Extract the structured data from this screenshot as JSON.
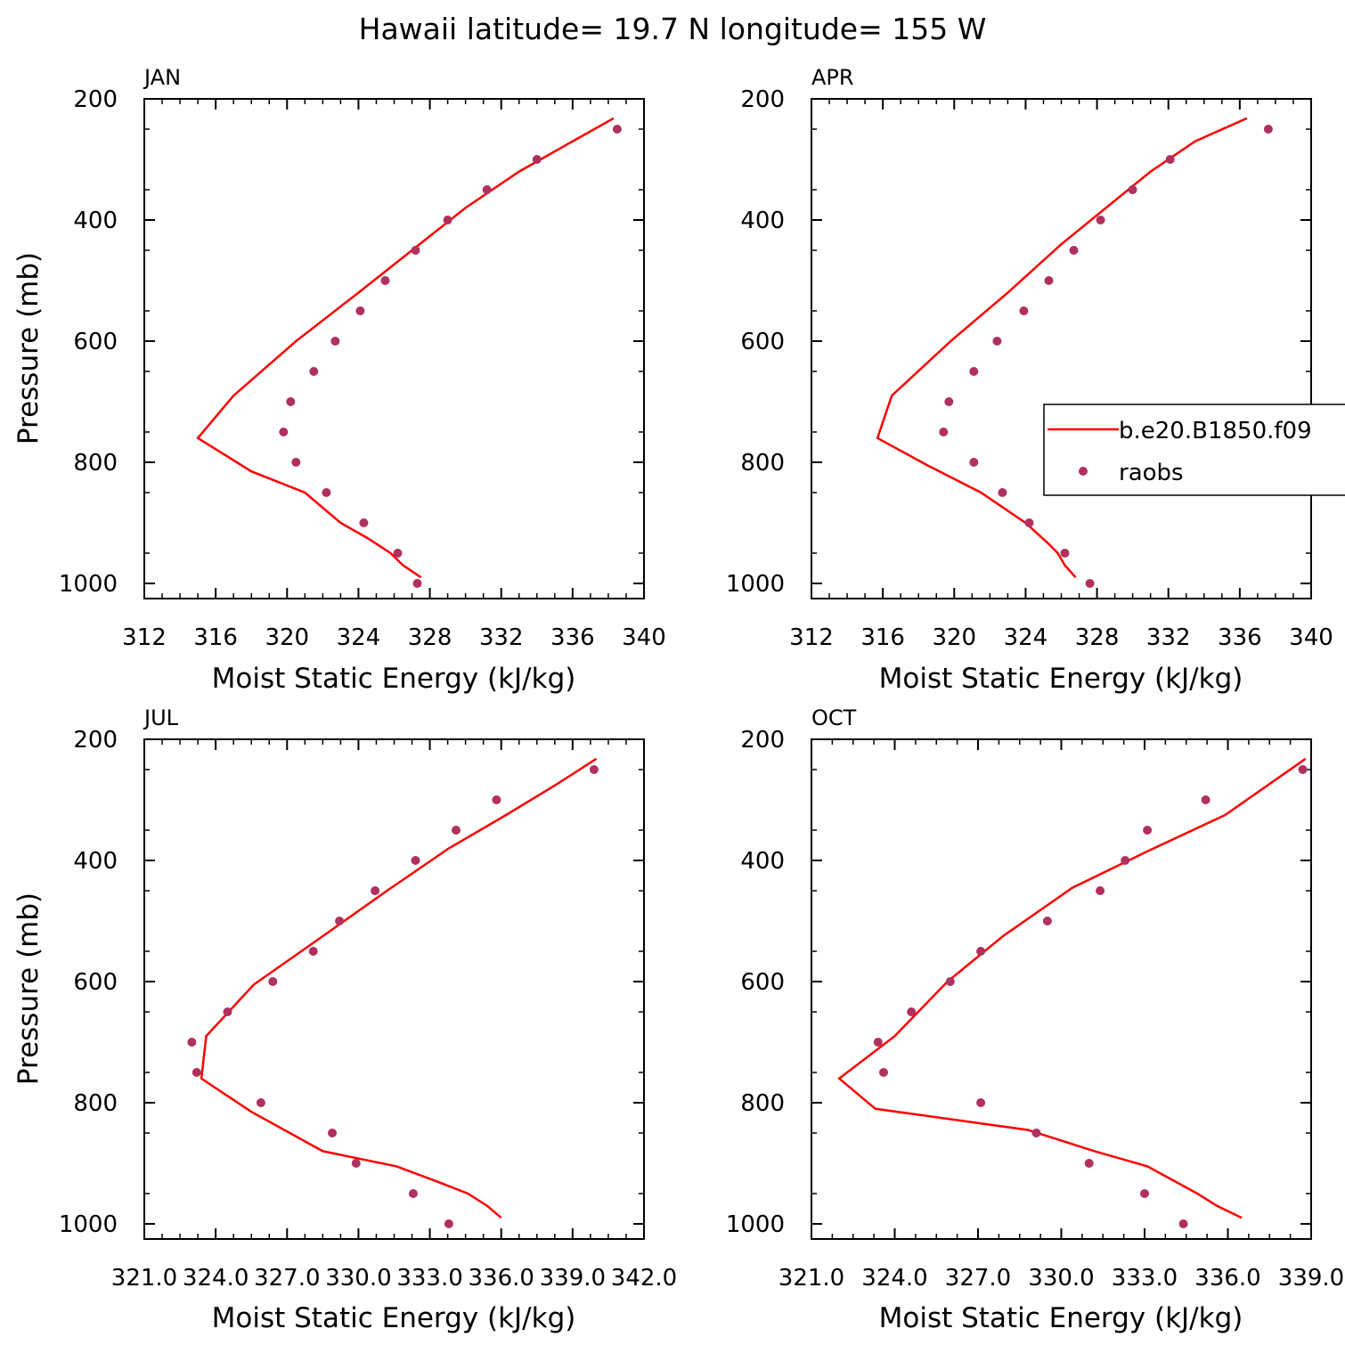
{
  "title": "Hawaii  latitude= 19.7 N longitude= 155 W",
  "colors": {
    "model": "#ff0000",
    "obs": "#b03060",
    "axis": "#000000"
  },
  "legend": {
    "entries": [
      "b.e20.B1850.f09",
      "raobs"
    ],
    "placement": "right of APR panel"
  },
  "chart_data": [
    {
      "type": "line+scatter",
      "panel_label": "JAN",
      "xlabel": "Moist Static Energy (kJ/kg)",
      "ylabel": "Pressure (mb)",
      "xlim": [
        312,
        340
      ],
      "ylim": [
        1000,
        200
      ],
      "xticks": [
        312,
        316,
        320,
        324,
        328,
        332,
        336,
        340
      ],
      "xtick_labels": [
        "312",
        "316",
        "320",
        "324",
        "328",
        "332",
        "336",
        "340"
      ],
      "yticks": [
        200,
        400,
        600,
        800,
        1000
      ],
      "ytick_labels": [
        "200",
        "400",
        "600",
        "800",
        "1000"
      ],
      "series": [
        {
          "name": "b.e20.B1850.f09",
          "kind": "line",
          "x": [
            327.5,
            326.5,
            325.8,
            324.5,
            323,
            321,
            318,
            315,
            317,
            320.5,
            324,
            327,
            330,
            333,
            336,
            338.3
          ],
          "y": [
            990,
            970,
            950,
            925,
            900,
            850,
            815,
            760,
            690,
            600,
            520,
            450,
            380,
            320,
            270,
            232
          ]
        },
        {
          "name": "raobs",
          "kind": "scatter",
          "x": [
            327.3,
            326.2,
            324.3,
            322.2,
            320.5,
            319.8,
            320.2,
            321.5,
            322.7,
            324.1,
            325.5,
            327.2,
            329,
            331.2,
            334,
            338.5
          ],
          "y": [
            1000,
            950,
            900,
            850,
            800,
            750,
            700,
            650,
            600,
            550,
            500,
            450,
            400,
            350,
            300,
            250
          ]
        }
      ]
    },
    {
      "type": "line+scatter",
      "panel_label": "APR",
      "xlabel": "Moist Static Energy (kJ/kg)",
      "ylabel": "",
      "xlim": [
        312,
        340
      ],
      "ylim": [
        1000,
        200
      ],
      "xticks": [
        312,
        316,
        320,
        324,
        328,
        332,
        336,
        340
      ],
      "xtick_labels": [
        "312",
        "316",
        "320",
        "324",
        "328",
        "332",
        "336",
        "340"
      ],
      "yticks": [
        200,
        400,
        600,
        800,
        1000
      ],
      "ytick_labels": [
        "200",
        "400",
        "600",
        "800",
        "1000"
      ],
      "series": [
        {
          "name": "b.e20.B1850.f09",
          "kind": "line",
          "x": [
            326.8,
            326.2,
            325.8,
            325.3,
            324,
            321.5,
            318.5,
            315.7,
            316.5,
            319.8,
            323,
            326,
            328.5,
            331,
            333.5,
            336.4
          ],
          "y": [
            990,
            970,
            950,
            935,
            900,
            850,
            805,
            760,
            690,
            600,
            520,
            440,
            380,
            320,
            270,
            232
          ]
        },
        {
          "name": "raobs",
          "kind": "scatter",
          "x": [
            327.6,
            326.2,
            324.2,
            322.7,
            321.1,
            319.4,
            319.7,
            321.1,
            322.4,
            323.9,
            325.3,
            326.7,
            328.2,
            330,
            332.1,
            337.6
          ],
          "y": [
            1000,
            950,
            900,
            850,
            800,
            750,
            700,
            650,
            600,
            550,
            500,
            450,
            400,
            350,
            300,
            250
          ]
        }
      ]
    },
    {
      "type": "line+scatter",
      "panel_label": "JUL",
      "xlabel": "Moist Static Energy (kJ/kg)",
      "ylabel": "Pressure (mb)",
      "xlim": [
        321,
        342
      ],
      "ylim": [
        1000,
        200
      ],
      "xticks": [
        321,
        324,
        327,
        330,
        333,
        336,
        339,
        342
      ],
      "xtick_labels": [
        "321.0",
        "324.0",
        "327.0",
        "330.0",
        "333.0",
        "336.0",
        "339.0",
        "342.0"
      ],
      "yticks": [
        200,
        400,
        600,
        800,
        1000
      ],
      "ytick_labels": [
        "200",
        "400",
        "600",
        "800",
        "1000"
      ],
      "series": [
        {
          "name": "b.e20.B1850.f09",
          "kind": "line",
          "x": [
            336.0,
            335.4,
            334.6,
            333.3,
            331.6,
            328.5,
            325.5,
            323.4,
            323.6,
            325.6,
            328.5,
            331.2,
            333.8,
            336.2,
            338.3,
            340.0
          ],
          "y": [
            990,
            970,
            950,
            930,
            905,
            880,
            815,
            760,
            690,
            605,
            525,
            450,
            380,
            325,
            275,
            232
          ]
        },
        {
          "name": "raobs",
          "kind": "scatter",
          "x": [
            333.8,
            332.3,
            329.9,
            328.9,
            325.9,
            323.2,
            323.0,
            324.5,
            326.4,
            328.1,
            329.2,
            330.7,
            332.4,
            334.1,
            335.8,
            339.9
          ],
          "y": [
            1000,
            950,
            900,
            850,
            800,
            750,
            700,
            650,
            600,
            550,
            500,
            450,
            400,
            350,
            300,
            250
          ]
        }
      ]
    },
    {
      "type": "line+scatter",
      "panel_label": "OCT",
      "xlabel": "Moist Static Energy (kJ/kg)",
      "ylabel": "",
      "xlim": [
        321,
        339
      ],
      "ylim": [
        1000,
        200
      ],
      "xticks": [
        321,
        324,
        327,
        330,
        333,
        336,
        339
      ],
      "xtick_labels": [
        "321.0",
        "324.0",
        "327.0",
        "330.0",
        "333.0",
        "336.0",
        "339.0"
      ],
      "yticks": [
        200,
        400,
        600,
        800,
        1000
      ],
      "ytick_labels": [
        "200",
        "400",
        "600",
        "800",
        "1000"
      ],
      "series": [
        {
          "name": "b.e20.B1850.f09",
          "kind": "line",
          "x": [
            336.5,
            335.6,
            334.9,
            334.1,
            333.1,
            331.2,
            328.8,
            323.3,
            322.0,
            324.0,
            325.9,
            327.9,
            330.4,
            333.1,
            335.9,
            338.8
          ],
          "y": [
            990,
            970,
            950,
            930,
            905,
            880,
            845,
            810,
            760,
            690,
            600,
            525,
            445,
            385,
            325,
            232
          ]
        },
        {
          "name": "raobs",
          "kind": "scatter",
          "x": [
            334.4,
            333.0,
            331.0,
            329.1,
            327.1,
            323.6,
            323.4,
            324.6,
            326.0,
            327.1,
            329.5,
            331.4,
            332.3,
            333.1,
            335.2,
            338.7
          ],
          "y": [
            1000,
            950,
            900,
            850,
            800,
            750,
            700,
            650,
            600,
            550,
            500,
            450,
            400,
            350,
            300,
            250
          ]
        }
      ]
    }
  ]
}
